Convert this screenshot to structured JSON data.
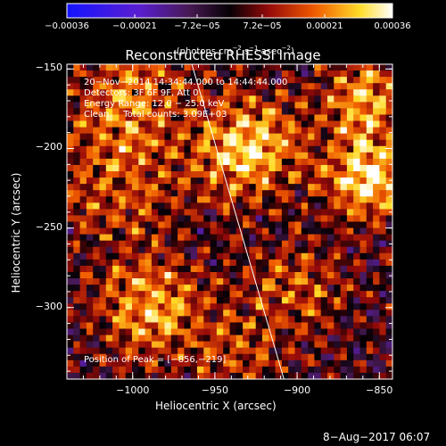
{
  "chart_data": {
    "type": "heatmap",
    "title": "Reconstructed RHESSI Image",
    "xlabel": "Heliocentric X (arcsec)",
    "ylabel": "Heliocentric Y (arcsec)",
    "xlim": [
      -1040,
      -842
    ],
    "ylim": [
      -345,
      -147
    ],
    "x_ticks": [
      "−1000",
      "−950",
      "−900",
      "−850"
    ],
    "x_tick_values": [
      -1000,
      -950,
      -900,
      -850
    ],
    "y_ticks": [
      "−150",
      "−200",
      "−250",
      "−300"
    ],
    "y_tick_values": [
      -150,
      -200,
      -250,
      -300
    ],
    "colorbar": {
      "ticks": [
        "−0.00036",
        "−0.00021",
        "−7.2e−05",
        "7.2e−05",
        "0.00021",
        "0.00036"
      ],
      "tick_values": [
        -0.00036,
        -0.00021,
        -7.2e-05,
        7.2e-05,
        0.00021,
        0.00036
      ],
      "range": [
        -0.00036,
        0.00036
      ],
      "units_prefix": "(photons cm",
      "units_sup1": "−2",
      "units_mid": " s",
      "units_sup2": "−1",
      "units_mid2": " asec",
      "units_sup3": "−2",
      "units_suffix": ")",
      "colormap": "blue-purple-red-yellow-white"
    },
    "info_lines": [
      "20−Nov−2014 14:34:44.000 to 14:44:44.000",
      "Detectors: 3F 6F 9F, Att 0",
      "Energy Range: 12.0 − 25.0 keV",
      "Clean     Total counts: 3.09E+03"
    ],
    "peak_label": "Position of Peak = [−856,−219]",
    "peak": [
      -856,
      -219
    ],
    "limb_line": [
      [
        -964,
        -147
      ],
      [
        -908,
        -345
      ]
    ],
    "grid": false,
    "image_note": "clean image intensity map, mostly positive emission with bright sources near (-930,-200), (-985,-300) and the east edge near (-850,-200)"
  },
  "footer": {
    "datestamp": "8−Aug−2017 06:07"
  }
}
